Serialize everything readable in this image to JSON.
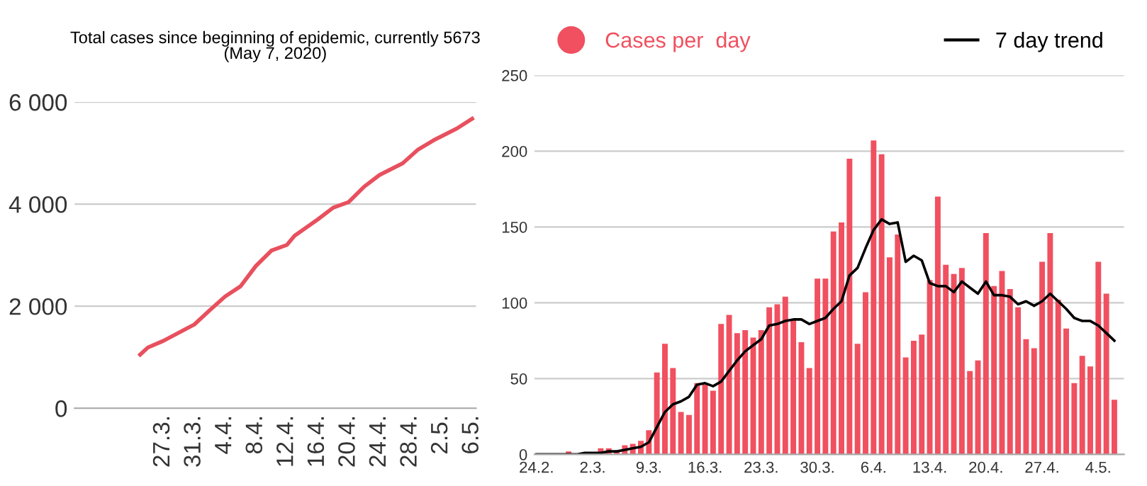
{
  "chart_data": [
    {
      "type": "line",
      "title": "Total cases since beginning of epidemic, currently 5673\n(May 7, 2020)",
      "color": "#e8505e",
      "x": [
        "2020-03-24",
        "2020-03-25",
        "2020-03-27",
        "2020-03-29",
        "2020-03-31",
        "2020-04-02",
        "2020-04-04",
        "2020-04-06",
        "2020-04-08",
        "2020-04-10",
        "2020-04-12",
        "2020-04-13",
        "2020-04-16",
        "2020-04-18",
        "2020-04-20",
        "2020-04-22",
        "2020-04-24",
        "2020-04-27",
        "2020-04-29",
        "2020-05-01",
        "2020-05-04",
        "2020-05-06"
      ],
      "values": [
        1050,
        1190,
        1320,
        1480,
        1640,
        1920,
        2190,
        2390,
        2790,
        3090,
        3200,
        3380,
        3700,
        3930,
        4040,
        4340,
        4570,
        4800,
        5070,
        5250,
        5480,
        5673
      ],
      "xlim": [
        "2020-03-15T12:00",
        "2020-05-06T12:00"
      ],
      "xticks": [
        {
          "value": "2020-03-27",
          "label": "27.3."
        },
        {
          "value": "2020-03-31",
          "label": "31.3."
        },
        {
          "value": "2020-04-04",
          "label": "4.4."
        },
        {
          "value": "2020-04-08",
          "label": "8.4."
        },
        {
          "value": "2020-04-12",
          "label": "12.4."
        },
        {
          "value": "2020-04-16",
          "label": "16.4."
        },
        {
          "value": "2020-04-20",
          "label": "20.4."
        },
        {
          "value": "2020-04-24",
          "label": "24.4."
        },
        {
          "value": "2020-04-28",
          "label": "28.4."
        },
        {
          "value": "2020-05-02",
          "label": "2.5."
        },
        {
          "value": "2020-05-06",
          "label": "6.5."
        }
      ],
      "ylim": [
        0,
        6000
      ],
      "yticks": [
        0,
        {
          "value": 2000,
          "label": "2 000"
        },
        {
          "value": 4000,
          "label": "4 000"
        },
        {
          "value": 6000,
          "label": "6 000"
        }
      ],
      "grid": "y",
      "legend": false
    },
    {
      "type": "bar",
      "x": [
        "2020-02-24",
        "2020-02-25",
        "2020-02-26",
        "2020-02-27",
        "2020-02-28",
        "2020-02-29",
        "2020-03-01",
        "2020-03-02",
        "2020-03-03",
        "2020-03-04",
        "2020-03-05",
        "2020-03-06",
        "2020-03-07",
        "2020-03-08",
        "2020-03-09",
        "2020-03-10",
        "2020-03-11",
        "2020-03-12",
        "2020-03-13",
        "2020-03-14",
        "2020-03-15",
        "2020-03-16",
        "2020-03-17",
        "2020-03-18",
        "2020-03-19",
        "2020-03-20",
        "2020-03-21",
        "2020-03-22",
        "2020-03-23",
        "2020-03-24",
        "2020-03-25",
        "2020-03-26",
        "2020-03-27",
        "2020-03-28",
        "2020-03-29",
        "2020-03-30",
        "2020-03-31",
        "2020-04-01",
        "2020-04-02",
        "2020-04-03",
        "2020-04-04",
        "2020-04-05",
        "2020-04-06",
        "2020-04-07",
        "2020-04-08",
        "2020-04-09",
        "2020-04-10",
        "2020-04-11",
        "2020-04-12",
        "2020-04-13",
        "2020-04-14",
        "2020-04-15",
        "2020-04-16",
        "2020-04-17",
        "2020-04-18",
        "2020-04-19",
        "2020-04-20",
        "2020-04-21",
        "2020-04-22",
        "2020-04-23",
        "2020-04-24",
        "2020-04-25",
        "2020-04-26",
        "2020-04-27",
        "2020-04-28",
        "2020-04-29",
        "2020-04-30",
        "2020-05-01",
        "2020-05-02",
        "2020-05-03",
        "2020-05-04",
        "2020-05-05",
        "2020-05-06"
      ],
      "series": [
        {
          "name": "Cases per  day",
          "type": "bar",
          "color": "#f0505f",
          "values": [
            0,
            0,
            0,
            0,
            2,
            0,
            0,
            1,
            4,
            4,
            2,
            6,
            7,
            9,
            16,
            54,
            73,
            57,
            28,
            26,
            47,
            46,
            42,
            86,
            92,
            80,
            82,
            77,
            82,
            97,
            99,
            104,
            89,
            74,
            57,
            116,
            116,
            147,
            153,
            195,
            73,
            107,
            207,
            198,
            130,
            145,
            64,
            75,
            79,
            115,
            170,
            125,
            119,
            123,
            55,
            62,
            146,
            111,
            121,
            109,
            97,
            76,
            70,
            127,
            146,
            102,
            83,
            47,
            65,
            58,
            127,
            106,
            36
          ]
        },
        {
          "name": "7 day trend",
          "type": "line",
          "color": "#000000",
          "values": [
            0,
            0,
            0,
            0,
            0,
            0,
            1,
            1,
            1,
            2,
            2,
            3,
            4,
            5,
            8,
            18,
            28,
            33,
            35,
            38,
            46,
            47,
            45,
            48,
            55,
            62,
            68,
            72,
            76,
            85,
            86,
            88,
            89,
            89,
            86,
            88,
            90,
            96,
            101,
            118,
            123,
            136,
            148,
            155,
            152,
            153,
            127,
            131,
            128,
            113,
            111,
            111,
            107,
            114,
            110,
            106,
            114,
            105,
            105,
            104,
            99,
            101,
            98,
            101,
            106,
            101,
            96,
            90,
            88,
            88,
            85,
            80,
            75
          ]
        }
      ],
      "xlim": [
        "2020-02-23T18:00",
        "2020-05-07T05:00"
      ],
      "xticks": [
        {
          "value": "2020-02-24",
          "label": "24.2."
        },
        {
          "value": "2020-03-02",
          "label": "2.3."
        },
        {
          "value": "2020-03-09",
          "label": "9.3."
        },
        {
          "value": "2020-03-16",
          "label": "16.3."
        },
        {
          "value": "2020-03-23",
          "label": "23.3."
        },
        {
          "value": "2020-03-30",
          "label": "30.3."
        },
        {
          "value": "2020-04-06",
          "label": "6.4."
        },
        {
          "value": "2020-04-13",
          "label": "13.4."
        },
        {
          "value": "2020-04-20",
          "label": "20.4."
        },
        {
          "value": "2020-04-27",
          "label": "27.4."
        },
        {
          "value": "2020-05-04",
          "label": "4.5."
        }
      ],
      "ylim": [
        0,
        250
      ],
      "yticks": [
        0,
        50,
        100,
        150,
        200,
        250
      ],
      "grid": "y",
      "legend": "top"
    }
  ]
}
